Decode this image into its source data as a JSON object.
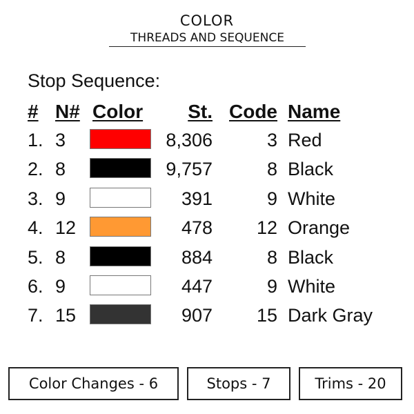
{
  "header": {
    "title": "COLOR",
    "subtitle": "THREADS AND SEQUENCE"
  },
  "section_label": "Stop Sequence:",
  "columns": [
    "#",
    "N#",
    "Color",
    "St.",
    "Code",
    "Name"
  ],
  "rows": [
    {
      "idx": "1.",
      "n": "3",
      "color": "#ff0000",
      "stitches": "8,306",
      "code": "3",
      "name": "Red"
    },
    {
      "idx": "2.",
      "n": "8",
      "color": "#000000",
      "stitches": "9,757",
      "code": "8",
      "name": "Black"
    },
    {
      "idx": "3.",
      "n": "9",
      "color": "#ffffff",
      "stitches": "391",
      "code": "9",
      "name": "White"
    },
    {
      "idx": "4.",
      "n": "12",
      "color": "#ff9933",
      "stitches": "478",
      "code": "12",
      "name": "Orange"
    },
    {
      "idx": "5.",
      "n": "8",
      "color": "#000000",
      "stitches": "884",
      "code": "8",
      "name": "Black"
    },
    {
      "idx": "6.",
      "n": "9",
      "color": "#ffffff",
      "stitches": "447",
      "code": "9",
      "name": "White"
    },
    {
      "idx": "7.",
      "n": "15",
      "color": "#333333",
      "stitches": "907",
      "code": "15",
      "name": "Dark Gray"
    }
  ],
  "summary": {
    "color_changes": "Color Changes - 6",
    "stops": "Stops - 7",
    "trims": "Trims - 20"
  }
}
